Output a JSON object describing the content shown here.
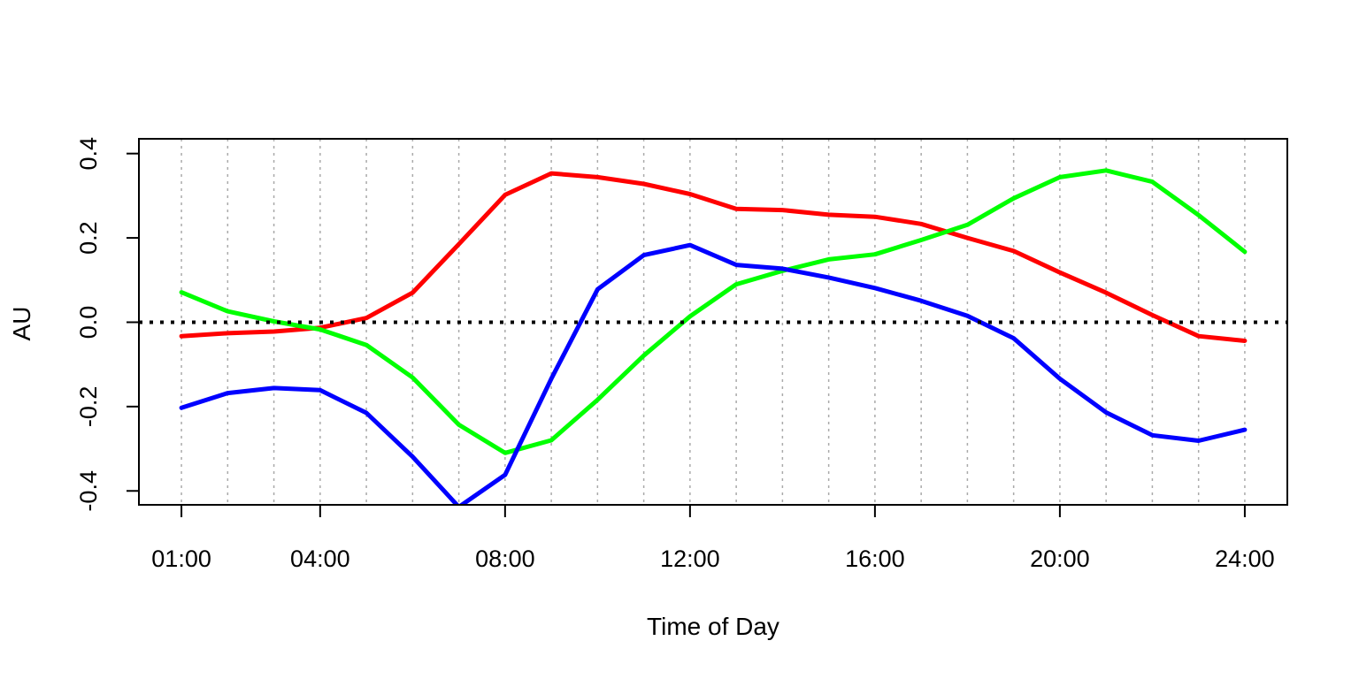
{
  "chart_data": {
    "type": "line",
    "title": "",
    "xlabel": "Time of Day",
    "ylabel": "AU",
    "x": [
      1,
      2,
      3,
      4,
      5,
      6,
      7,
      8,
      9,
      10,
      11,
      12,
      13,
      14,
      15,
      16,
      17,
      18,
      19,
      20,
      21,
      22,
      23,
      24
    ],
    "x_ticks": [
      1,
      4,
      8,
      12,
      16,
      20,
      24
    ],
    "x_tick_labels": [
      "01:00",
      "04:00",
      "08:00",
      "12:00",
      "16:00",
      "20:00",
      "24:00"
    ],
    "xlim": [
      0.08,
      24.92
    ],
    "y_ticks": [
      -0.4,
      -0.2,
      0.0,
      0.2,
      0.4
    ],
    "y_tick_labels": [
      "-0.4",
      "-0.2",
      "0.0",
      "0.2",
      "0.4"
    ],
    "ylim": [
      -0.433,
      0.435
    ],
    "reference_line": {
      "y": 0,
      "style": "dotted",
      "color": "#000000"
    },
    "vertical_gridlines": {
      "x": [
        1,
        2,
        3,
        4,
        5,
        6,
        7,
        8,
        9,
        10,
        11,
        12,
        13,
        14,
        15,
        16,
        17,
        18,
        19,
        20,
        21,
        22,
        23,
        24
      ],
      "style": "dotted",
      "color": "#aaaaaa"
    },
    "series": [
      {
        "name": "red",
        "color": "#ff0000",
        "values": [
          -0.033,
          -0.026,
          -0.022,
          -0.013,
          0.01,
          0.07,
          0.185,
          0.302,
          0.353,
          0.344,
          0.328,
          0.304,
          0.269,
          0.266,
          0.255,
          0.25,
          0.233,
          0.2,
          0.169,
          0.118,
          0.07,
          0.017,
          -0.033,
          -0.044
        ]
      },
      {
        "name": "green",
        "color": "#00ff00",
        "values": [
          0.071,
          0.026,
          0.002,
          -0.017,
          -0.054,
          -0.131,
          -0.243,
          -0.31,
          -0.28,
          -0.184,
          -0.079,
          0.014,
          0.09,
          0.122,
          0.149,
          0.161,
          0.195,
          0.231,
          0.294,
          0.344,
          0.36,
          0.333,
          0.254,
          0.167
        ]
      },
      {
        "name": "blue",
        "color": "#0000ff",
        "values": [
          -0.203,
          -0.168,
          -0.156,
          -0.161,
          -0.215,
          -0.319,
          -0.438,
          -0.362,
          -0.134,
          0.078,
          0.159,
          0.183,
          0.136,
          0.127,
          0.106,
          0.081,
          0.051,
          0.015,
          -0.038,
          -0.134,
          -0.214,
          -0.268,
          -0.281,
          -0.255
        ]
      }
    ]
  }
}
